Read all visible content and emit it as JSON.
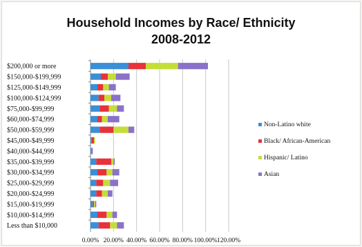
{
  "chart_data": {
    "type": "bar",
    "stacked": true,
    "orientation": "horizontal",
    "title": "Household Incomes by Race/ Ethnicity",
    "subtitle": "2008-2012",
    "categories": [
      "$200,000 or more",
      "$150,000-$199,999",
      "$125,000-$149,999",
      "$100,000-$124,999",
      "$75,000-$99,999",
      "$60,000-$74,999",
      "$50,000-$59,999",
      "$45,000-$49,999",
      "$40,000-$44,999",
      "$35,000-$39,999",
      "$30,000-$34,999",
      "$25,000-$29,999",
      "$20,000-$24,999",
      "$15,000-$19,999",
      "$10,000-$14,999",
      "Less than $10,000"
    ],
    "series": [
      {
        "name": "Non-Latino white",
        "color": "#3a8fd6",
        "values": [
          33,
          9,
          6,
          7,
          8,
          6,
          8,
          1,
          1,
          5,
          6,
          5,
          5,
          2,
          6,
          7
        ]
      },
      {
        "name": "Black/ African-American",
        "color": "#e8323a",
        "values": [
          15,
          6,
          5,
          5,
          8,
          4,
          12,
          2,
          0,
          13,
          8,
          6,
          5,
          1,
          8,
          10
        ]
      },
      {
        "name": "Hispanic/ Latino",
        "color": "#c4de38",
        "values": [
          28,
          7,
          5,
          6,
          7,
          5,
          13,
          1,
          0,
          2,
          5,
          6,
          5,
          1,
          5,
          6
        ]
      },
      {
        "name": "Asian",
        "color": "#8a72c8",
        "values": [
          26,
          12,
          6,
          8,
          6,
          10,
          5,
          0,
          1,
          1,
          6,
          7,
          4,
          1,
          4,
          6
        ]
      }
    ],
    "xlim": [
      0,
      120
    ],
    "xticks": [
      "0.00%",
      "20.00%",
      "40.00%",
      "60.00%",
      "80.00%",
      "100.00%",
      "120.00%"
    ],
    "legend_position": "right",
    "grid": true
  }
}
